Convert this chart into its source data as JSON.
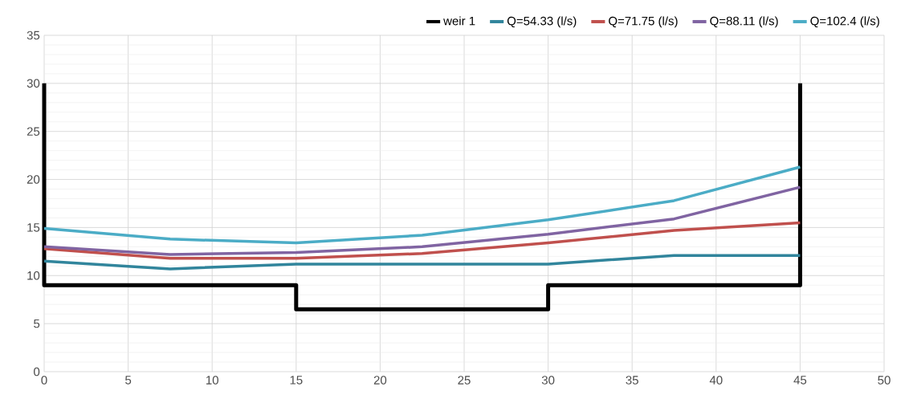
{
  "chart_data": {
    "type": "line",
    "xlim": [
      0,
      50
    ],
    "ylim": [
      0,
      35
    ],
    "xticks": [
      0,
      5,
      10,
      15,
      20,
      25,
      30,
      35,
      40,
      45,
      50
    ],
    "yticks": [
      0,
      5,
      10,
      15,
      20,
      25,
      30,
      35
    ],
    "grid": true,
    "legend": "top",
    "marker": "none",
    "line_style": "solid",
    "series": [
      {
        "name": "weir 1",
        "color": "#000000",
        "x": [
          0,
          0,
          15,
          15,
          30,
          30,
          45,
          45
        ],
        "values": [
          30,
          9,
          9,
          6.5,
          6.5,
          9,
          9,
          30
        ]
      },
      {
        "name": "Q=54.33 (l/s)",
        "color": "#31859c",
        "x": [
          0,
          7.5,
          15,
          22.5,
          30,
          37.5,
          45
        ],
        "values": [
          11.5,
          10.7,
          11.2,
          11.2,
          11.2,
          12.1,
          12.1
        ]
      },
      {
        "name": "Q=71.75 (l/s)",
        "color": "#c0504d",
        "x": [
          0,
          7.5,
          15,
          22.5,
          30,
          37.5,
          45
        ],
        "values": [
          12.8,
          11.8,
          11.8,
          12.3,
          13.4,
          14.7,
          15.5
        ]
      },
      {
        "name": "Q=88.11 (l/s)",
        "color": "#8064a2",
        "x": [
          0,
          7.5,
          15,
          22.5,
          30,
          37.5,
          45
        ],
        "values": [
          13,
          12.2,
          12.4,
          13,
          14.3,
          15.9,
          19.2
        ]
      },
      {
        "name": "Q=102.4 (l/s)",
        "color": "#4bacc6",
        "x": [
          0,
          7.5,
          15,
          22.5,
          30,
          37.5,
          45
        ],
        "values": [
          14.9,
          13.8,
          13.4,
          14.2,
          15.8,
          17.8,
          21.3
        ]
      }
    ]
  }
}
